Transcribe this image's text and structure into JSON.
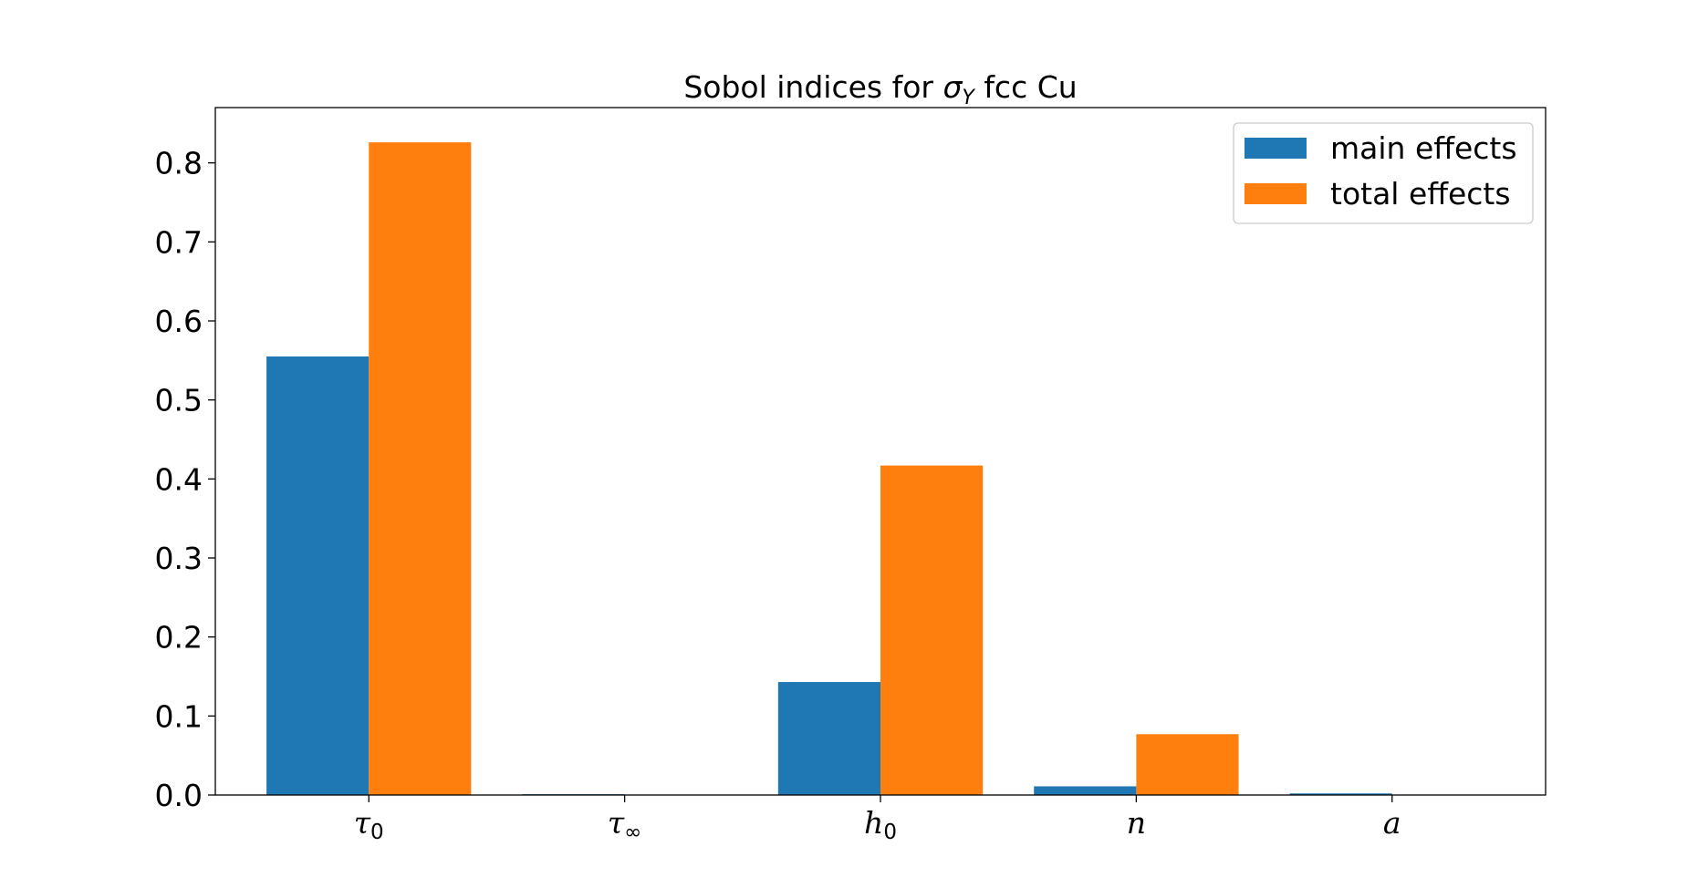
{
  "chart_data": {
    "type": "bar",
    "title": {
      "prefix": "Sobol indices for ",
      "symbol": "σ",
      "symbol_sub": "Y",
      "suffix": " fcc Cu"
    },
    "categories": [
      {
        "base": "τ",
        "sub": "0"
      },
      {
        "base": "τ",
        "sub": "∞"
      },
      {
        "base": "h",
        "sub": "0"
      },
      {
        "base": "n",
        "sub": ""
      },
      {
        "base": "a",
        "sub": ""
      }
    ],
    "series": [
      {
        "name": "main effects",
        "color": "#1f77b4",
        "values": [
          0.555,
          0.001,
          0.143,
          0.011,
          0.002
        ]
      },
      {
        "name": "total effects",
        "color": "#ff7f0e",
        "values": [
          0.826,
          0.0,
          0.417,
          0.077,
          0.0
        ]
      }
    ],
    "ylim": [
      0,
      0.87
    ],
    "yticks": [
      "0.0",
      "0.1",
      "0.2",
      "0.3",
      "0.4",
      "0.5",
      "0.6",
      "0.7",
      "0.8"
    ],
    "xlabel": "",
    "ylabel": "",
    "grid": false,
    "legend_position": "top-right"
  }
}
